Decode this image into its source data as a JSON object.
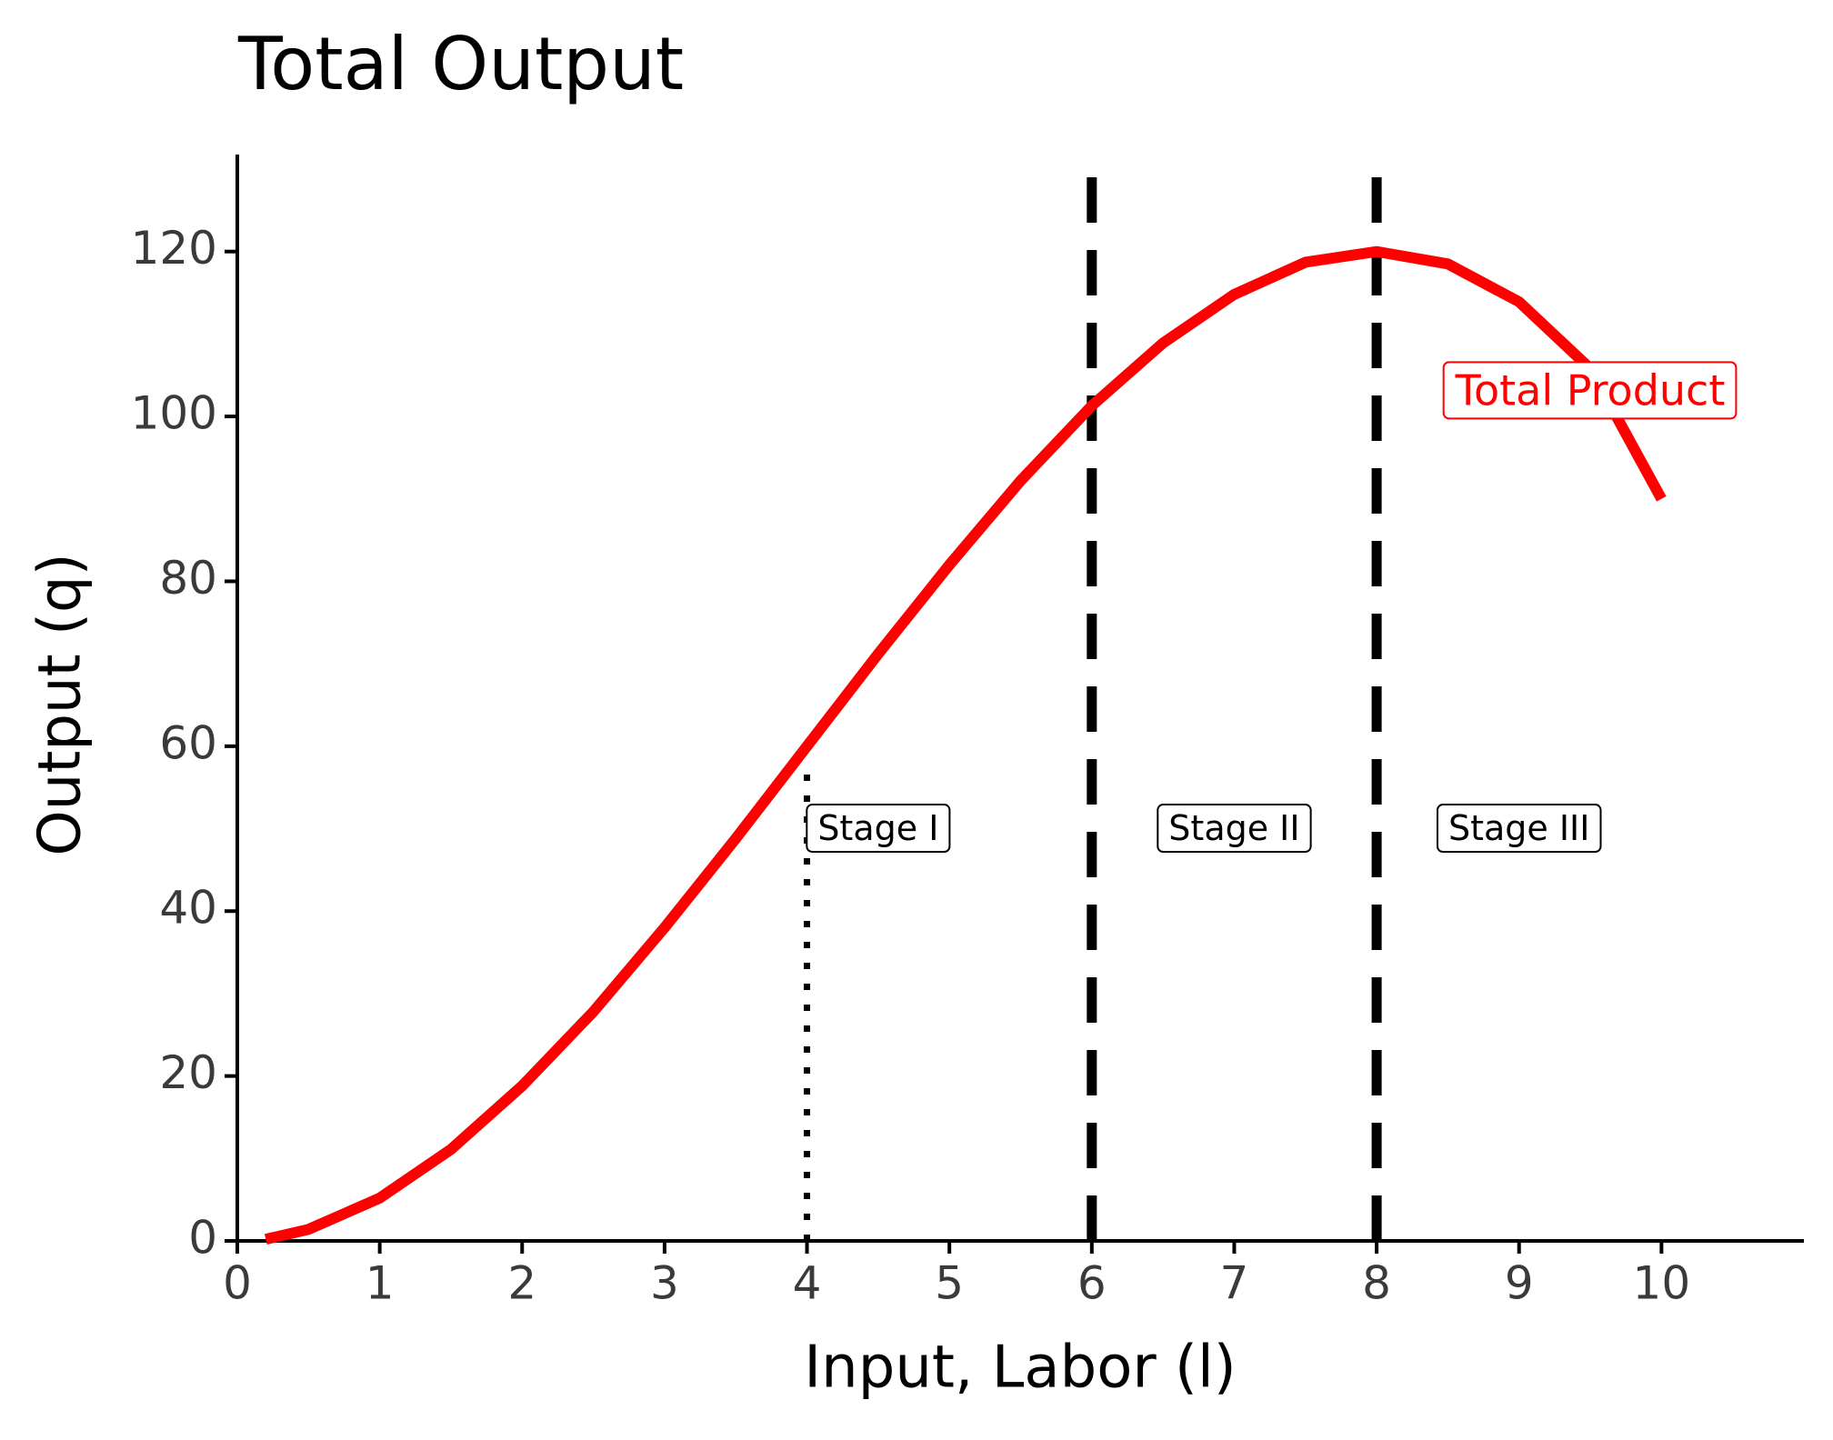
{
  "chart_data": {
    "type": "line",
    "title": "Total Output",
    "x_label": "Input, Labor (l)",
    "y_label": "Output (q)",
    "x": [
      0.2,
      0.5,
      1,
      1.5,
      2,
      2.5,
      3,
      3.5,
      4,
      4.5,
      5,
      5.5,
      6,
      6.5,
      7,
      7.5,
      8,
      8.5,
      9,
      9.5,
      10
    ],
    "series": [
      {
        "name": "Total Product",
        "color": "#ff0000",
        "values": [
          0.2,
          1.4,
          5.2,
          11.1,
          18.8,
          27.8,
          38.0,
          48.8,
          60,
          71.2,
          82.0,
          92.2,
          101.3,
          108.9,
          114.8,
          118.7,
          120,
          118.5,
          113.9,
          105.8,
          90
        ]
      }
    ],
    "xlim": [
      0,
      11
    ],
    "ylim": [
      0,
      130
    ],
    "xticks": [
      0,
      1,
      2,
      3,
      4,
      5,
      6,
      7,
      8,
      9,
      10
    ],
    "yticks": [
      0,
      20,
      40,
      60,
      80,
      100,
      120
    ],
    "vlines": [
      {
        "x": 4,
        "style": "dotted",
        "ymax": 58
      },
      {
        "x": 6,
        "style": "dashed"
      },
      {
        "x": 8,
        "style": "dashed"
      }
    ],
    "annotations": [
      {
        "text": "Stage I",
        "x": 4.5,
        "y": 50,
        "color": "#000000"
      },
      {
        "text": "Stage II",
        "x": 7,
        "y": 50,
        "color": "#000000"
      },
      {
        "text": "Stage III",
        "x": 9,
        "y": 50,
        "color": "#000000"
      },
      {
        "text": "Total Product",
        "x": 9.5,
        "y": 103,
        "color": "#ff0000"
      }
    ]
  }
}
